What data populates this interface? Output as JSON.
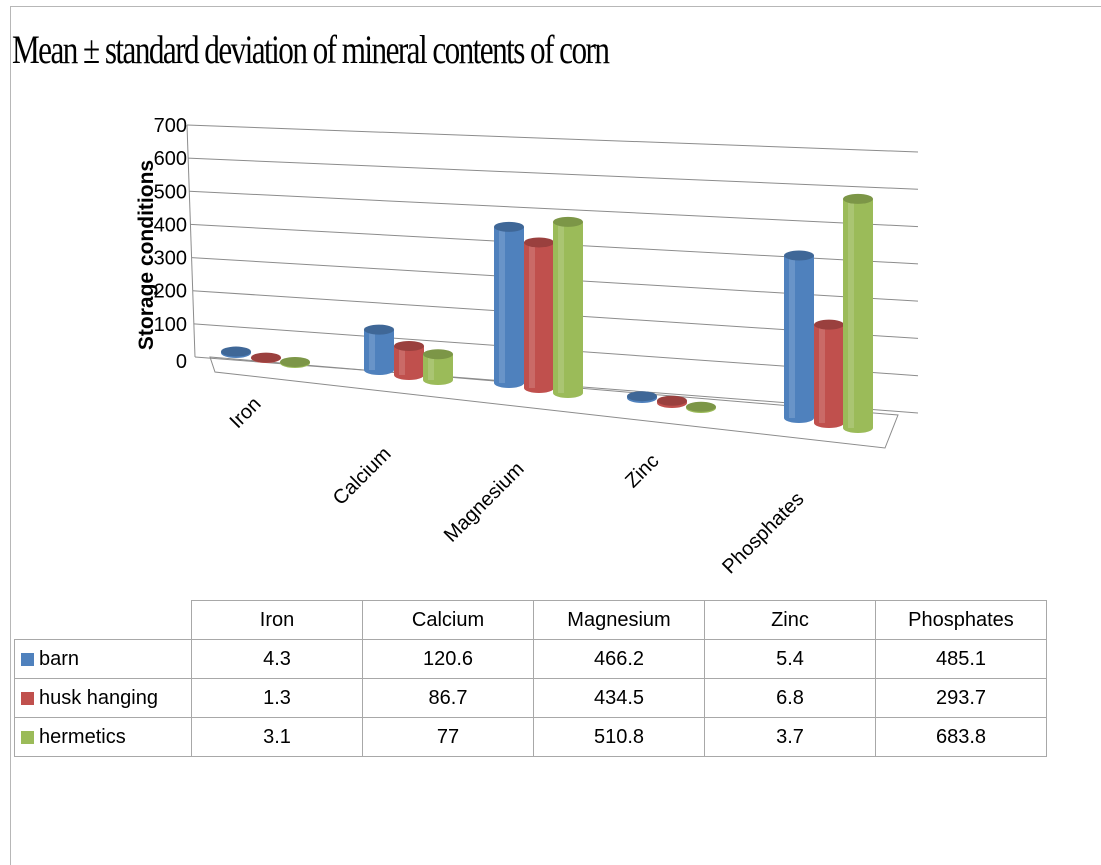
{
  "chart_data": {
    "type": "bar",
    "title": "Mean ± standard deviation of mineral contents of corn",
    "ylabel": "Storage conditions",
    "xlabel": "",
    "ylim": [
      0,
      700
    ],
    "yticks": [
      0,
      100,
      200,
      300,
      400,
      500,
      600,
      700
    ],
    "categories": [
      "Iron",
      "Calcium",
      "Magnesium",
      "Zinc",
      "Phosphates"
    ],
    "series": [
      {
        "name": "barn",
        "color": "#4f81bd",
        "values": [
          4.3,
          120.6,
          466.2,
          5.4,
          485.1
        ]
      },
      {
        "name": "husk hanging",
        "color": "#c0504d",
        "values": [
          1.3,
          86.7,
          434.5,
          6.8,
          293.7
        ]
      },
      {
        "name": "hermetics",
        "color": "#9bbb59",
        "values": [
          3.1,
          77,
          510.8,
          3.7,
          683.8
        ]
      }
    ],
    "grid": true,
    "legend": "data-table-below"
  },
  "table": {
    "columns": [
      "Iron",
      "Calcium",
      "Magnesium",
      "Zinc",
      "Phosphates"
    ],
    "rows": [
      {
        "label": "barn",
        "values": [
          "4.3",
          "120.6",
          "466.2",
          "5.4",
          "485.1"
        ]
      },
      {
        "label": "husk hanging",
        "values": [
          "1.3",
          "86.7",
          "434.5",
          "6.8",
          "293.7"
        ]
      },
      {
        "label": "hermetics",
        "values": [
          "3.1",
          "77",
          "510.8",
          "3.7",
          "683.8"
        ]
      }
    ]
  }
}
